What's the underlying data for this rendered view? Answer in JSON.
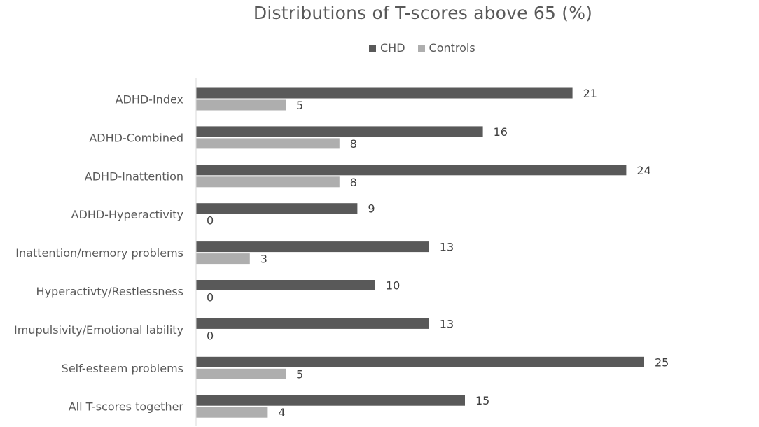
{
  "chart_data": {
    "type": "bar",
    "orientation": "horizontal",
    "title": "Distributions of T-scores above 65 (%)",
    "xlabel": "",
    "ylabel": "",
    "categories": [
      "ADHD-Index",
      "ADHD-Combined",
      "ADHD-Inattention",
      "ADHD-Hyperactivity",
      "Inattention/memory problems",
      "Hyperactivty/Restlessness",
      "Imupulsivity/Emotional lability",
      "Self-esteem problems",
      "All T-scores together"
    ],
    "series": [
      {
        "name": "CHD",
        "color": "#595959",
        "values": [
          21,
          16,
          24,
          9,
          13,
          10,
          13,
          25,
          15
        ]
      },
      {
        "name": "Controls",
        "color": "#aeaeae",
        "values": [
          5,
          8,
          8,
          0,
          3,
          0,
          0,
          5,
          4
        ]
      }
    ],
    "xlim": [
      0,
      25
    ],
    "grid": false,
    "legend_position": "top",
    "data_labels": true
  }
}
